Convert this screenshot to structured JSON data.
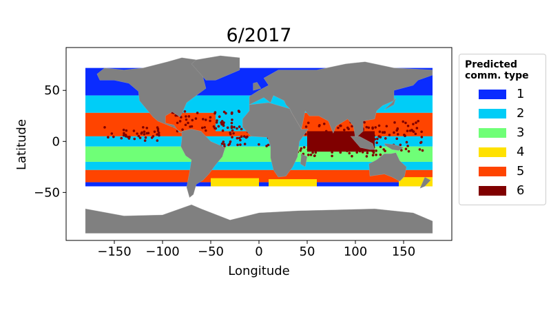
{
  "chart_data": {
    "type": "scatter-map",
    "title": "6/2017",
    "xlabel": "Longitude",
    "ylabel": "Latitude",
    "xlim": [
      -200,
      200
    ],
    "ylim": [
      -97,
      92
    ],
    "xticks": [
      -150,
      -100,
      -50,
      0,
      50,
      100,
      150
    ],
    "yticks": [
      -50,
      0,
      50
    ],
    "legend": {
      "title": "Predicted\ncomm. type",
      "placement": "outside-right",
      "entries": [
        {
          "label": "1",
          "color": "#0a2cff"
        },
        {
          "label": "2",
          "color": "#00cdf7"
        },
        {
          "label": "3",
          "color": "#6fff77"
        },
        {
          "label": "4",
          "color": "#ffe100"
        },
        {
          "label": "5",
          "color": "#ff4400"
        },
        {
          "label": "6",
          "color": "#800000"
        }
      ]
    },
    "land_color": "#808080",
    "grid": false
  }
}
